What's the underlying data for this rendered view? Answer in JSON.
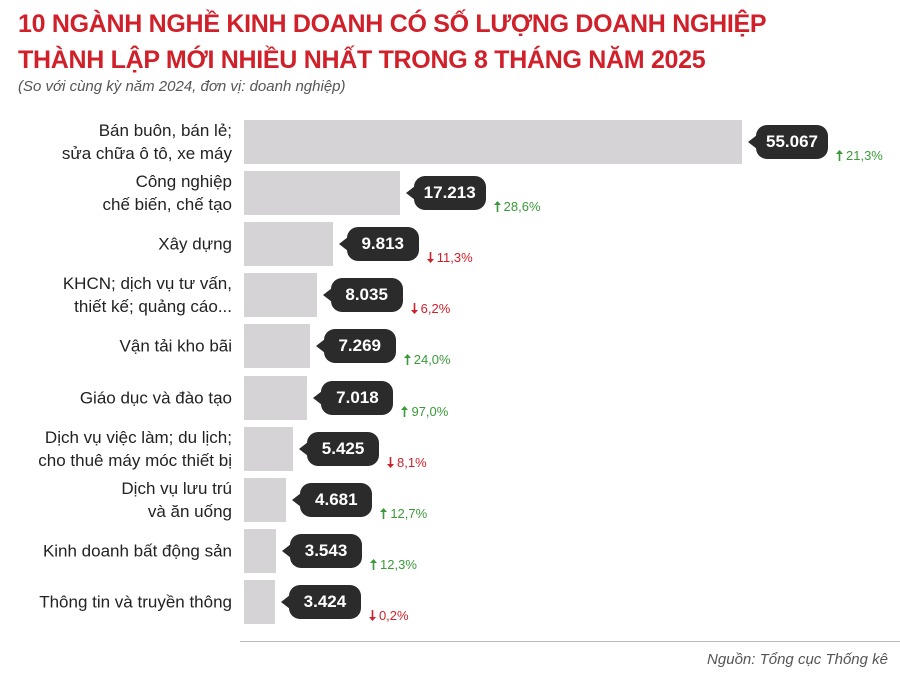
{
  "chart_data": {
    "type": "bar",
    "orientation": "horizontal",
    "title": "10 NGÀNH NGHỀ KINH DOANH CÓ SỐ LƯỢNG DOANH NGHIỆP\nTHÀNH LẬP MỚI NHIỀU NHẤT TRONG 8 THÁNG NĂM 2025",
    "subtitle": "(So với cùng kỳ năm 2024, đơn vị: doanh nghiệp)",
    "categories": [
      "Bán buôn, bán lẻ;\nsửa chữa ô tô, xe máy",
      "Công nghiệp\nchế biến, chế tạo",
      "Xây dựng",
      "KHCN; dịch vụ tư vấn,\nthiết kế; quảng cáo...",
      "Vận tải kho bãi",
      "Giáo dục và đào tạo",
      "Dịch vụ việc làm; du lịch;\ncho thuê máy móc thiết bị",
      "Dịch vụ lưu trú\nvà ăn uống",
      "Kinh doanh bất động sản",
      "Thông tin và truyền thông"
    ],
    "values": [
      55067,
      17213,
      9813,
      8035,
      7269,
      7018,
      5425,
      4681,
      3543,
      3424
    ],
    "value_labels": [
      "55.067",
      "17.213",
      "9.813",
      "8.035",
      "7.269",
      "7.018",
      "5.425",
      "4.681",
      "3.543",
      "3.424"
    ],
    "changes": [
      21.3,
      28.6,
      -11.3,
      -6.2,
      24.0,
      97.0,
      -8.1,
      12.7,
      12.3,
      -0.2
    ],
    "change_labels": [
      "21,3%",
      "28,6%",
      "11,3%",
      "6,2%",
      "24,0%",
      "97,0%",
      "8,1%",
      "12,7%",
      "12,3%",
      "0,2%"
    ],
    "color": "#d5d3d5",
    "up_color": "#3a9a3a",
    "down_color": "#d0202a",
    "source": "Nguồn: Tổng cục Thống kê"
  }
}
